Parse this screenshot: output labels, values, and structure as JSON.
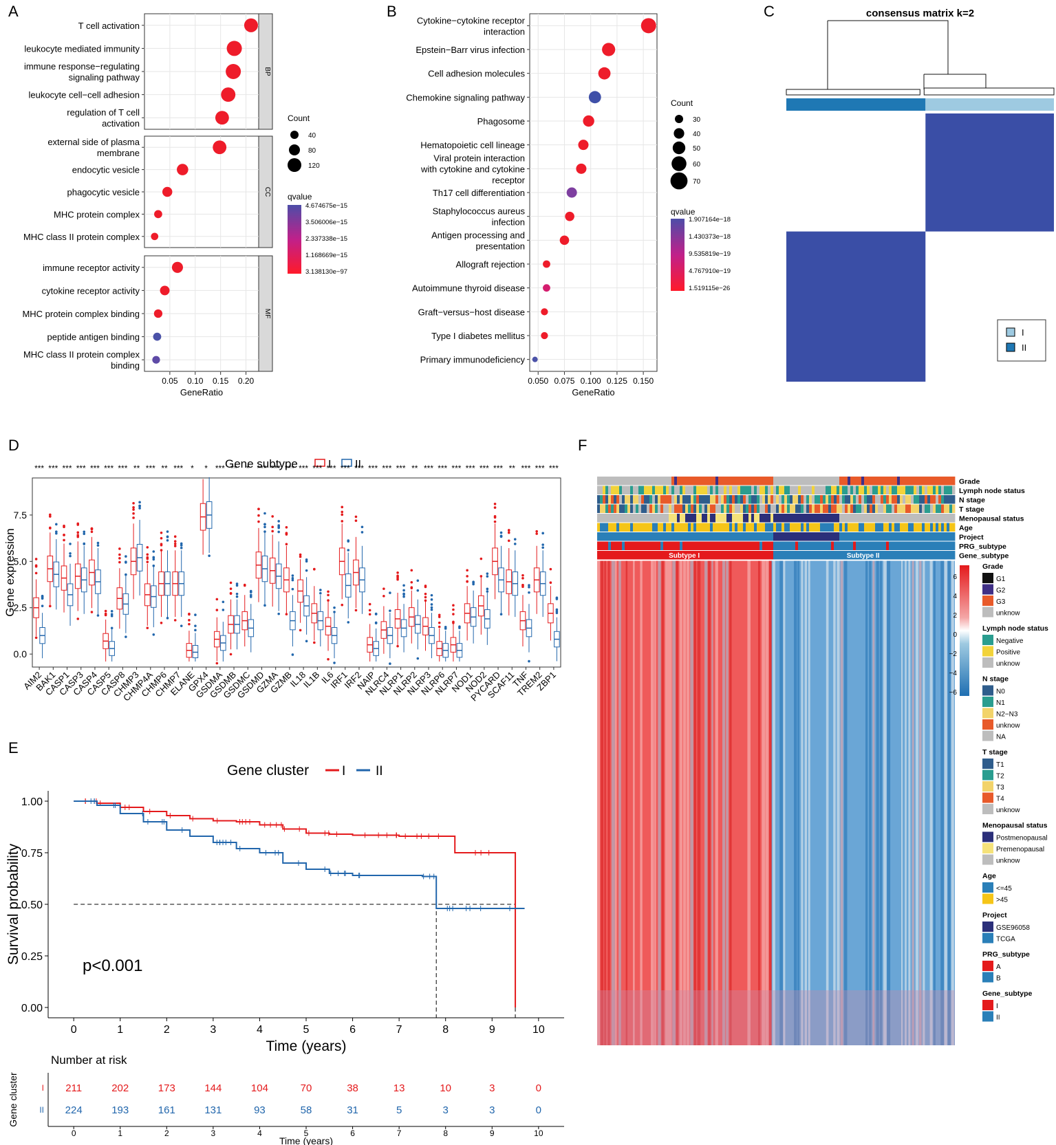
{
  "panel_labels": {
    "a": "A",
    "b": "B",
    "c": "C",
    "d": "D",
    "e": "E",
    "f": "F"
  },
  "colors": {
    "red": "#e41a1c",
    "blue": "#2166ac",
    "navy": "#3a4ea6",
    "strip": "#ebebeb"
  },
  "chart_data": [
    {
      "id": "A",
      "type": "scatter",
      "xlabel": "GeneRatio",
      "xlim": [
        0,
        0.225
      ],
      "xticks": [
        "0.05",
        "0.10",
        "0.15",
        "0.20"
      ],
      "facets": [
        {
          "name": "BP",
          "terms": [
            {
              "label": [
                "T cell activation"
              ],
              "x": 0.21,
              "count": 112,
              "color": "#ee1c2a"
            },
            {
              "label": [
                "leukocyte mediated immunity"
              ],
              "x": 0.177,
              "count": 130,
              "color": "#ee1c2a"
            },
            {
              "label": [
                "immune response−regulating",
                "signaling pathway"
              ],
              "x": 0.175,
              "count": 130,
              "color": "#ee1c2a"
            },
            {
              "label": [
                "leukocyte cell−cell adhesion"
              ],
              "x": 0.165,
              "count": 120,
              "color": "#ee1c2a"
            },
            {
              "label": [
                "regulation of T cell",
                "activation"
              ],
              "x": 0.153,
              "count": 110,
              "color": "#ee1c2a"
            }
          ]
        },
        {
          "name": "CC",
          "terms": [
            {
              "label": [
                "external side of plasma",
                "membrane"
              ],
              "x": 0.148,
              "count": 110,
              "color": "#ee1c2a"
            },
            {
              "label": [
                "endocytic vesicle"
              ],
              "x": 0.075,
              "count": 80,
              "color": "#ee1c2a"
            },
            {
              "label": [
                "phagocytic vesicle"
              ],
              "x": 0.045,
              "count": 60,
              "color": "#ee1c2a"
            },
            {
              "label": [
                "MHC protein complex"
              ],
              "x": 0.027,
              "count": 35,
              "color": "#ee1c2a"
            },
            {
              "label": [
                "MHC class II protein complex"
              ],
              "x": 0.02,
              "count": 25,
              "color": "#ee1c2a"
            }
          ]
        },
        {
          "name": "MF",
          "terms": [
            {
              "label": [
                "immune receptor activity"
              ],
              "x": 0.065,
              "count": 75,
              "color": "#ee1c2a"
            },
            {
              "label": [
                "cytokine receptor activity"
              ],
              "x": 0.04,
              "count": 55,
              "color": "#ee1c2a"
            },
            {
              "label": [
                "MHC protein complex binding"
              ],
              "x": 0.027,
              "count": 40,
              "color": "#ee1c2a"
            },
            {
              "label": [
                "peptide antigen binding"
              ],
              "x": 0.025,
              "count": 35,
              "color": "#4b52a8"
            },
            {
              "label": [
                "MHC class II protein complex",
                "binding"
              ],
              "x": 0.023,
              "count": 30,
              "color": "#5e4aa6"
            }
          ]
        }
      ],
      "legend": {
        "count_title": "Count",
        "count_values": [
          "40",
          "80",
          "120"
        ],
        "q_title": "qvalue",
        "q_labels": [
          "4.674675e−15",
          "3.506006e−15",
          "2.337338e−15",
          "1.168669e−15",
          "3.138130e−97"
        ]
      }
    },
    {
      "id": "B",
      "type": "scatter",
      "xlabel": "GeneRatio",
      "xlim": [
        0.042,
        0.163
      ],
      "xticks": [
        "0.050",
        "0.075",
        "0.100",
        "0.125",
        "0.150"
      ],
      "terms": [
        {
          "label": [
            "Cytokine−cytokine receptor",
            "interaction"
          ],
          "x": 0.155,
          "count": 70,
          "color": "#ee1c2a"
        },
        {
          "label": [
            "Epstein−Barr virus infection"
          ],
          "x": 0.117,
          "count": 60,
          "color": "#ee1c2a"
        },
        {
          "label": [
            "Cell adhesion molecules"
          ],
          "x": 0.113,
          "count": 55,
          "color": "#ee1c2a"
        },
        {
          "label": [
            "Chemokine signaling pathway"
          ],
          "x": 0.104,
          "count": 55,
          "color": "#3f50a8"
        },
        {
          "label": [
            "Phagosome"
          ],
          "x": 0.098,
          "count": 50,
          "color": "#ee1c2a"
        },
        {
          "label": [
            "Hematopoietic cell lineage"
          ],
          "x": 0.093,
          "count": 45,
          "color": "#ee1c2a"
        },
        {
          "label": [
            "Viral protein interaction",
            "with cytokine and cytokine",
            "receptor"
          ],
          "x": 0.091,
          "count": 45,
          "color": "#ee1c2a"
        },
        {
          "label": [
            "Th17 cell differentiation"
          ],
          "x": 0.082,
          "count": 45,
          "color": "#7e3fa0"
        },
        {
          "label": [
            "Staphylococcus aureus",
            "infection"
          ],
          "x": 0.08,
          "count": 40,
          "color": "#ee1c2a"
        },
        {
          "label": [
            "Antigen processing and",
            "presentation"
          ],
          "x": 0.075,
          "count": 40,
          "color": "#ee1c2a"
        },
        {
          "label": [
            "Allograft rejection"
          ],
          "x": 0.058,
          "count": 30,
          "color": "#ee1c2a"
        },
        {
          "label": [
            "Autoimmune thyroid disease"
          ],
          "x": 0.058,
          "count": 30,
          "color": "#d41d6e"
        },
        {
          "label": [
            "Graft−versus−host disease"
          ],
          "x": 0.056,
          "count": 28,
          "color": "#ee1c2a"
        },
        {
          "label": [
            "Type I diabetes mellitus"
          ],
          "x": 0.056,
          "count": 28,
          "color": "#ee1c2a"
        },
        {
          "label": [
            "Primary immunodeficiency"
          ],
          "x": 0.047,
          "count": 20,
          "color": "#4b52a8"
        }
      ],
      "legend": {
        "count_title": "Count",
        "count_values": [
          "30",
          "40",
          "50",
          "60",
          "70"
        ],
        "q_title": "qvalue",
        "q_labels": [
          "1.907164e−18",
          "1.430373e−18",
          "9.535819e−19",
          "4.767910e−19",
          "1.519115e−26"
        ]
      }
    },
    {
      "id": "C",
      "type": "heatmap",
      "title": "consensus matrix k=2",
      "clusters": [
        {
          "name": "I",
          "fraction": 0.52,
          "color": "#9ecae1"
        },
        {
          "name": "II",
          "fraction": 0.48,
          "color": "#1f78b4"
        }
      ],
      "legend": [
        "I",
        "II"
      ]
    },
    {
      "id": "D",
      "type": "bar",
      "title": "Gene subtype",
      "legend": [
        "I",
        "II"
      ],
      "ylabel": "Gene expression",
      "yticks": [
        "0.0",
        "2.5",
        "5.0",
        "7.5"
      ],
      "ylim": [
        -0.7,
        9.5
      ],
      "categories": [
        "AIM2",
        "BAK1",
        "CASP1",
        "CASP3",
        "CASP4",
        "CASP5",
        "CASP8",
        "CHMP3",
        "CHMP4A",
        "CHMP6",
        "CHMP7",
        "ELANE",
        "GPX4",
        "GSDMA",
        "GSDMB",
        "GSDMC",
        "GSDMD",
        "GZMA",
        "GZMB",
        "IL18",
        "IL1B",
        "IL6",
        "IRF1",
        "IRF2",
        "NAIP",
        "NLRC4",
        "NLRP1",
        "NLRP2",
        "NLRP3",
        "NLRP6",
        "NLRP7",
        "NOD1",
        "NOD2",
        "PYCARD",
        "SCAF11",
        "TNF",
        "TREM2",
        "ZBP1"
      ],
      "significance": [
        "***",
        "***",
        "***",
        "***",
        "***",
        "***",
        "***",
        "**",
        "***",
        "**",
        "***",
        "*",
        "*",
        "***",
        "**",
        "*",
        "***",
        "***",
        "***",
        "***",
        "***",
        "***",
        "***",
        "***",
        "***",
        "***",
        "***",
        "**",
        "***",
        "***",
        "***",
        "***",
        "***",
        "***",
        "**",
        "***",
        "***",
        "***"
      ],
      "medians_I": [
        2.5,
        4.6,
        4.1,
        4.2,
        4.4,
        0.7,
        3.0,
        5.0,
        3.2,
        3.8,
        3.8,
        0.2,
        7.4,
        0.8,
        1.6,
        1.8,
        4.8,
        4.5,
        4.0,
        3.4,
        2.2,
        1.5,
        5.0,
        4.4,
        0.5,
        1.3,
        1.9,
        2.0,
        1.5,
        0.3,
        0.5,
        2.2,
        2.6,
        5.0,
        3.9,
        1.8,
        4.0,
        2.2
      ],
      "medians_II": [
        1.0,
        4.3,
        3.2,
        4.0,
        3.9,
        0.3,
        2.7,
        5.2,
        3.1,
        3.8,
        3.8,
        0.1,
        7.5,
        0.6,
        1.6,
        1.4,
        4.6,
        4.2,
        1.8,
        2.6,
        1.8,
        1.0,
        3.7,
        4.0,
        0.3,
        1.0,
        1.4,
        1.6,
        1.0,
        0.2,
        0.2,
        2.0,
        1.9,
        4.0,
        3.8,
        1.4,
        3.8,
        0.8
      ]
    },
    {
      "id": "E",
      "type": "line",
      "title": "Gene cluster",
      "legend": [
        "I",
        "II"
      ],
      "xlabel": "Time (years)",
      "ylabel": "Survival probability",
      "xticks": [
        "0",
        "1",
        "2",
        "3",
        "4",
        "5",
        "6",
        "7",
        "8",
        "9",
        "10"
      ],
      "yticks": [
        "0.00",
        "0.25",
        "0.50",
        "0.75",
        "1.00"
      ],
      "xlim": [
        -0.55,
        10.55
      ],
      "ylim": [
        -0.05,
        1.05
      ],
      "pvalue": "p<0.001",
      "series": [
        {
          "name": "I",
          "x": [
            0,
            0.5,
            1,
            1.5,
            2,
            2.5,
            3,
            3.5,
            4,
            4.5,
            5,
            5.5,
            6,
            7,
            7.5,
            8,
            8.2,
            9,
            9.5,
            9.5
          ],
          "y": [
            1,
            0.99,
            0.97,
            0.95,
            0.93,
            0.915,
            0.905,
            0.9,
            0.885,
            0.865,
            0.845,
            0.84,
            0.835,
            0.83,
            0.83,
            0.83,
            0.75,
            0.75,
            0.75,
            0
          ]
        },
        {
          "name": "II",
          "x": [
            0,
            0.5,
            1,
            1.5,
            2,
            2.5,
            3,
            3.5,
            4,
            4.5,
            5,
            5.5,
            6,
            7,
            7.5,
            7.8,
            7.8,
            9,
            9.7
          ],
          "y": [
            1,
            0.98,
            0.94,
            0.9,
            0.86,
            0.83,
            0.8,
            0.77,
            0.75,
            0.7,
            0.67,
            0.65,
            0.64,
            0.64,
            0.635,
            0.635,
            0.48,
            0.48,
            0.48
          ]
        }
      ],
      "risk_table": {
        "title": "Number at risk",
        "ylabel": "Gene cluster",
        "xlabel": "Time (years)",
        "rows": [
          {
            "name": "I",
            "values": [
              "211",
              "202",
              "173",
              "144",
              "104",
              "70",
              "38",
              "13",
              "10",
              "3",
              "0"
            ]
          },
          {
            "name": "II",
            "values": [
              "224",
              "193",
              "161",
              "131",
              "93",
              "58",
              "31",
              "5",
              "3",
              "3",
              "0"
            ]
          }
        ]
      }
    },
    {
      "id": "F",
      "type": "heatmap",
      "annotation_rows": [
        "Grade",
        "Lymph node status",
        "N stage",
        "T stage",
        "Menopausal status",
        "Age",
        "Project",
        "PRG_subtype",
        "Gene_subtype"
      ],
      "subtype_labels": [
        "Subtype I",
        "Subtype II"
      ],
      "color_scale": {
        "ticks": [
          "6",
          "4",
          "2",
          "0",
          "−2",
          "−4",
          "−6"
        ]
      },
      "legends": [
        {
          "title": "Grade",
          "items": [
            {
              "label": "G1",
              "color": "#111111"
            },
            {
              "label": "G2",
              "color": "#3f2f86"
            },
            {
              "label": "G3",
              "color": "#e85a2a"
            },
            {
              "label": "unknow",
              "color": "#bdbdbd"
            }
          ]
        },
        {
          "title": "Lymph node status",
          "items": [
            {
              "label": "Negative",
              "color": "#2a9d8f"
            },
            {
              "label": "Positive",
              "color": "#f2d33a"
            },
            {
              "label": "unknow",
              "color": "#bdbdbd"
            }
          ]
        },
        {
          "title": "N stage",
          "items": [
            {
              "label": "N0",
              "color": "#2f5d8c"
            },
            {
              "label": "N1",
              "color": "#2a9d8f"
            },
            {
              "label": "N2−N3",
              "color": "#f2d36a"
            },
            {
              "label": "unknow",
              "color": "#e85a2a"
            },
            {
              "label": "NA",
              "color": "#bdbdbd"
            }
          ]
        },
        {
          "title": "T stage",
          "items": [
            {
              "label": "T1",
              "color": "#2f5d8c"
            },
            {
              "label": "T2",
              "color": "#2a9d8f"
            },
            {
              "label": "T3",
              "color": "#f2d36a"
            },
            {
              "label": "T4",
              "color": "#e85a2a"
            },
            {
              "label": "unknow",
              "color": "#bdbdbd"
            }
          ]
        },
        {
          "title": "Menopausal status",
          "items": [
            {
              "label": "Postmenopausal",
              "color": "#2b2f7a"
            },
            {
              "label": "Premenopausal",
              "color": "#f5e27a"
            },
            {
              "label": "unknow",
              "color": "#bdbdbd"
            }
          ]
        },
        {
          "title": "Age",
          "items": [
            {
              "label": "<=45",
              "color": "#2a7fb8"
            },
            {
              "label": ">45",
              "color": "#f5c518"
            }
          ]
        },
        {
          "title": "Project",
          "items": [
            {
              "label": "GSE96058",
              "color": "#2b2f7a"
            },
            {
              "label": "TCGA",
              "color": "#2a7fb8"
            }
          ]
        },
        {
          "title": "PRG_subtype",
          "items": [
            {
              "label": "A",
              "color": "#e41a1c"
            },
            {
              "label": "B",
              "color": "#2a7fb8"
            }
          ]
        },
        {
          "title": "Gene_subtype",
          "items": [
            {
              "label": "I",
              "color": "#e41a1c"
            },
            {
              "label": "II",
              "color": "#2a7fb8"
            }
          ]
        }
      ]
    }
  ]
}
